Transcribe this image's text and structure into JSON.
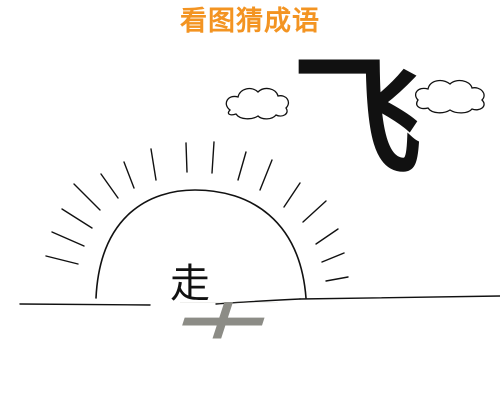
{
  "title": "看图猜成语",
  "chars": {
    "walk": "走",
    "fly": "飞"
  },
  "colors": {
    "title": "#f39422",
    "reflection": "#8c8c86",
    "ink": "#111111"
  }
}
